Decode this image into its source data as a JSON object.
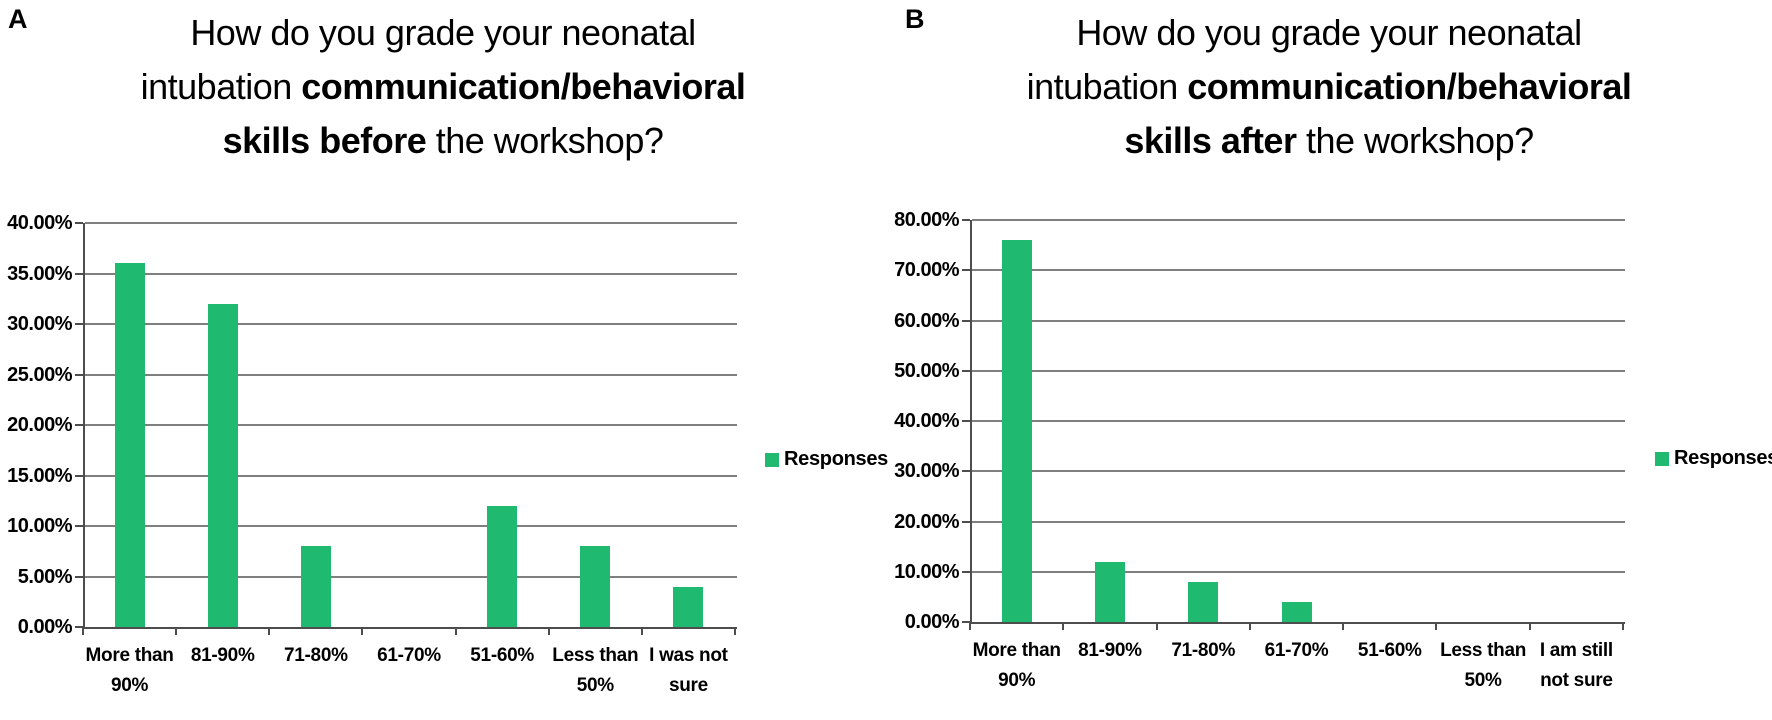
{
  "figure": {
    "colors": {
      "bar": "#1fba70",
      "grid": "#7f7f7f",
      "axis": "#4d4d4d",
      "text": "#000000"
    }
  },
  "chart_data": [
    {
      "type": "bar",
      "panel_label": "A",
      "title_lines": [
        [
          {
            "text": "How do you grade your neonatal",
            "bold": false
          }
        ],
        [
          {
            "text": "intubation ",
            "bold": false
          },
          {
            "text": "communication/behavioral",
            "bold": true
          }
        ],
        [
          {
            "text": "skills before",
            "bold": true
          },
          {
            "text": " the workshop?",
            "bold": false
          }
        ]
      ],
      "categories": [
        "More than 90%",
        "81-90%",
        "71-80%",
        "61-70%",
        "51-60%",
        "Less than 50%",
        "I was not sure"
      ],
      "values": [
        36,
        32,
        8,
        0,
        12,
        8,
        4
      ],
      "ylim": [
        0,
        40
      ],
      "yticks": [
        "0.00%",
        "5.00%",
        "10.00%",
        "15.00%",
        "20.00%",
        "25.00%",
        "30.00%",
        "35.00%",
        "40.00%"
      ],
      "legend": "Responses",
      "legend_position": "right",
      "grid": true,
      "xlabel": "",
      "ylabel": ""
    },
    {
      "type": "bar",
      "panel_label": "B",
      "title_lines": [
        [
          {
            "text": "How do you grade your neonatal",
            "bold": false
          }
        ],
        [
          {
            "text": "intubation ",
            "bold": false
          },
          {
            "text": "communication/behavioral",
            "bold": true
          }
        ],
        [
          {
            "text": "skills after",
            "bold": true
          },
          {
            "text": " the workshop?",
            "bold": false
          }
        ]
      ],
      "categories": [
        "More than 90%",
        "81-90%",
        "71-80%",
        "61-70%",
        "51-60%",
        "Less than 50%",
        "I am still not sure"
      ],
      "values": [
        76,
        12,
        8,
        4,
        0,
        0,
        0
      ],
      "ylim": [
        0,
        80
      ],
      "yticks": [
        "0.00%",
        "10.00%",
        "20.00%",
        "30.00%",
        "40.00%",
        "50.00%",
        "60.00%",
        "70.00%",
        "80.00%"
      ],
      "legend": "Responses",
      "legend_position": "right",
      "grid": true,
      "xlabel": "",
      "ylabel": ""
    }
  ]
}
